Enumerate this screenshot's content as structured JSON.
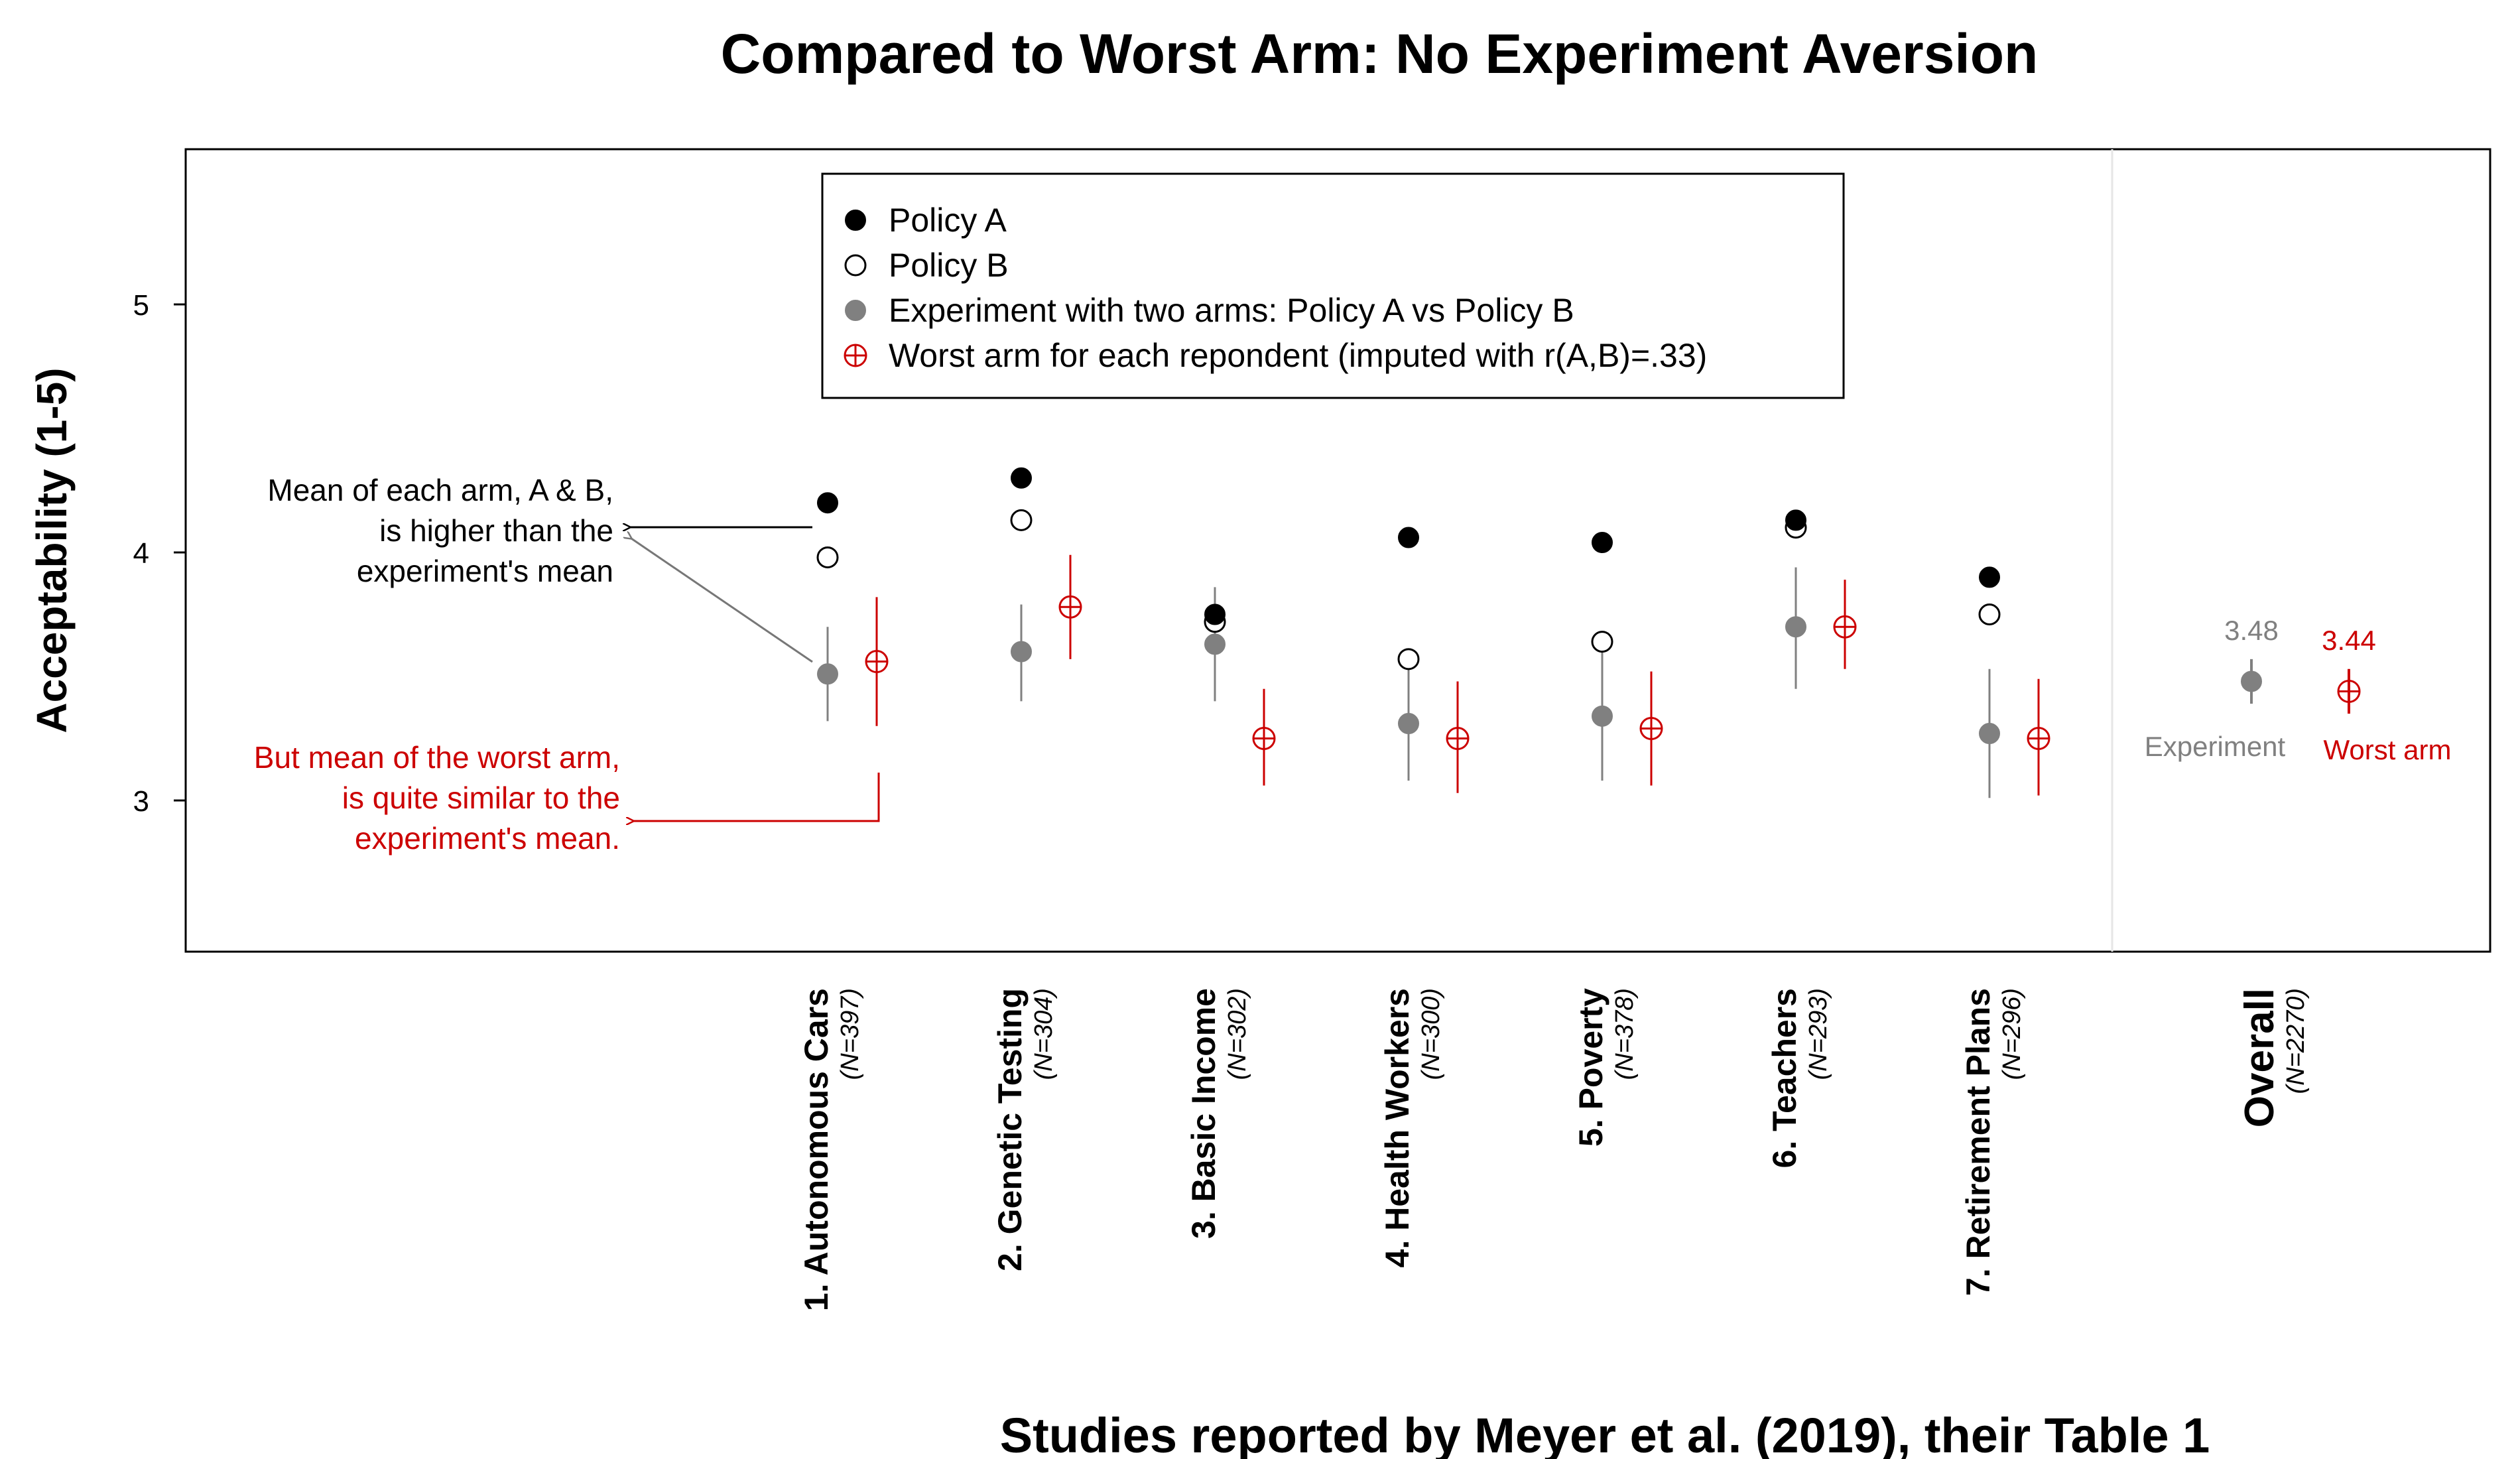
{
  "chart_data": {
    "type": "scatter",
    "title": "Compared to Worst Arm: No Experiment Aversion",
    "xlabel": "Studies reported by Meyer et al. (2019), their Table 1",
    "ylabel": "Acceptability (1-5)",
    "ylim": [
      2.35,
      5.6
    ],
    "yticks": [
      "3",
      "4",
      "5"
    ],
    "grid": false,
    "legend_position": "top-center",
    "legend": [
      {
        "label": "Policy A",
        "marker": "filled-black"
      },
      {
        "label": "Policy B",
        "marker": "open-circle"
      },
      {
        "label": "Experiment with two arms: Policy A vs Policy B",
        "marker": "filled-gray"
      },
      {
        "label": "Worst arm for each repondent (imputed with r(A,B)=.33)",
        "marker": "red-crossed-circle"
      }
    ],
    "studies": [
      {
        "name": "1. Autonomous Cars",
        "n": "(N=397)",
        "policy_a": 4.2,
        "policy_b": 3.98,
        "experiment": 3.51,
        "exp_ci": [
          3.32,
          3.7
        ],
        "worst": 3.56,
        "worst_ci": [
          3.3,
          3.82
        ]
      },
      {
        "name": "2. Genetic Testing",
        "n": "(N=304)",
        "policy_a": 4.3,
        "policy_b": 4.13,
        "experiment": 3.6,
        "exp_ci": [
          3.4,
          3.79
        ],
        "worst": 3.78,
        "worst_ci": [
          3.57,
          3.99
        ]
      },
      {
        "name": "3. Basic Income",
        "n": "(N=302)",
        "policy_a": 3.75,
        "policy_b": 3.72,
        "experiment": 3.63,
        "exp_ci": [
          3.4,
          3.86
        ],
        "worst": 3.25,
        "worst_ci": [
          3.06,
          3.45
        ]
      },
      {
        "name": "4. Health Workers",
        "n": "(N=300)",
        "policy_a": 4.06,
        "policy_b": 3.57,
        "experiment": 3.31,
        "exp_ci": [
          3.08,
          3.54
        ],
        "worst": 3.25,
        "worst_ci": [
          3.03,
          3.48
        ]
      },
      {
        "name": "5. Poverty",
        "n": "(N=378)",
        "policy_a": 4.04,
        "policy_b": 3.64,
        "experiment": 3.34,
        "exp_ci": [
          3.08,
          3.62
        ],
        "worst": 3.29,
        "worst_ci": [
          3.06,
          3.52
        ]
      },
      {
        "name": "6. Teachers",
        "n": "(N=293)",
        "policy_a": 4.13,
        "policy_b": 4.1,
        "experiment": 3.7,
        "exp_ci": [
          3.45,
          3.94
        ],
        "worst": 3.7,
        "worst_ci": [
          3.53,
          3.89
        ]
      },
      {
        "name": "7. Retirement Plans",
        "n": "(N=296)",
        "policy_a": 3.9,
        "policy_b": 3.75,
        "experiment": 3.27,
        "exp_ci": [
          3.01,
          3.53
        ],
        "worst": 3.25,
        "worst_ci": [
          3.02,
          3.49
        ]
      }
    ],
    "overall": {
      "name": "Overall",
      "n": "(N=2270)",
      "experiment": 3.48,
      "exp_ci": [
        3.39,
        3.57
      ],
      "exp_value_label": "3.48",
      "exp_text": "Experiment",
      "worst": 3.44,
      "worst_ci": [
        3.35,
        3.53
      ],
      "worst_value_label": "3.44",
      "worst_text": "Worst arm"
    },
    "annotations": {
      "arms_note": [
        "Mean of each arm, A & B,",
        "is higher than the",
        "experiment's mean"
      ],
      "worst_note": [
        "But mean of the worst arm,",
        "is quite similar to the",
        "experiment's mean."
      ]
    },
    "colors": {
      "experiment": "#808080",
      "worst": "#cc0000",
      "policy_a": "#000000",
      "axis": "#000000"
    }
  }
}
